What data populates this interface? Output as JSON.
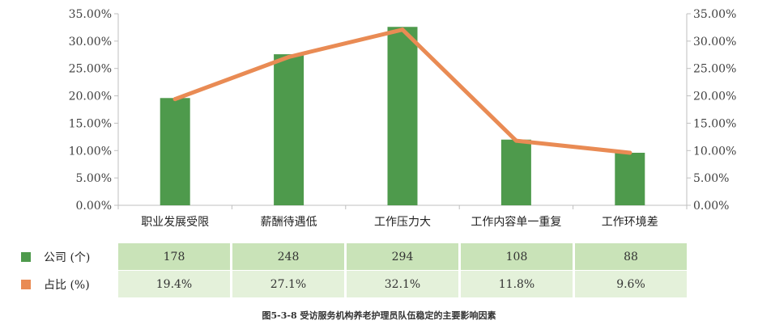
{
  "chart_data": {
    "type": "bar",
    "categories": [
      "职业发展受限",
      "薪酬待遇低",
      "工作压力大",
      "工作内容单一重复",
      "工作环境差"
    ],
    "series": [
      {
        "name": "公司 (个)",
        "axis": "left",
        "type": "bar",
        "color": "#4e9a4c",
        "values": [
          178,
          248,
          294,
          108,
          88
        ]
      },
      {
        "name": "占比 (%)",
        "axis": "right",
        "type": "line",
        "color": "#e98b54",
        "values": [
          19.4,
          27.1,
          32.1,
          11.8,
          9.6
        ]
      }
    ],
    "bar_heights_pct": [
      19.6,
      27.6,
      32.6,
      12.0,
      9.6
    ],
    "y_ticks_left": [
      "0.00%",
      "5.00%",
      "10.00%",
      "15.00%",
      "20.00%",
      "25.00%",
      "30.00%",
      "35.00%"
    ],
    "y_ticks_right": [
      "0.00%",
      "5.00%",
      "10.00%",
      "15.00%",
      "20.00%",
      "25.00%",
      "30.00%",
      "35.00%"
    ],
    "ylim": [
      0,
      35
    ],
    "grid": false,
    "data_table": {
      "rows": [
        {
          "label": "公司 (个)",
          "color": "#4e9a4c",
          "cells": [
            "178",
            "248",
            "294",
            "108",
            "88"
          ]
        },
        {
          "label": "占比 (%)",
          "color": "#e98b54",
          "cells": [
            "19.4%",
            "27.1%",
            "32.1%",
            "11.8%",
            "9.6%"
          ]
        }
      ]
    },
    "caption": "图5-3-8 受访服务机构养老护理员队伍稳定的主要影响因素"
  }
}
